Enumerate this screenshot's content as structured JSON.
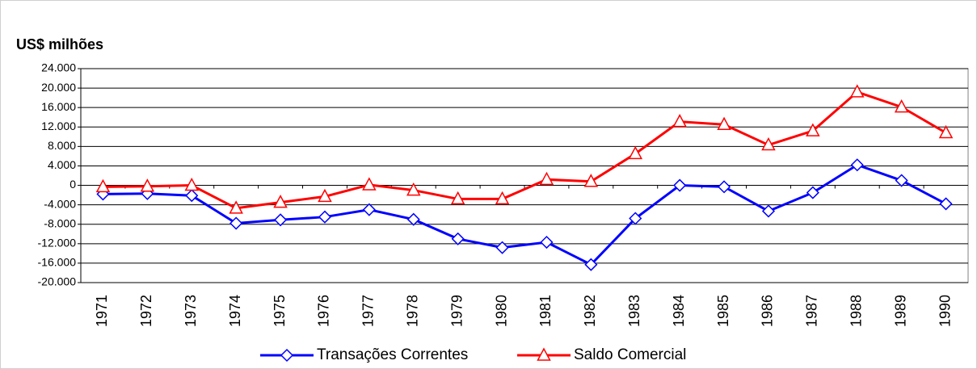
{
  "chart_data": {
    "type": "line",
    "title": "US$ milhões",
    "categories": [
      "1971",
      "1972",
      "1973",
      "1974",
      "1975",
      "1976",
      "1977",
      "1978",
      "1979",
      "1980",
      "1981",
      "1982",
      "1983",
      "1984",
      "1985",
      "1986",
      "1987",
      "1988",
      "1989",
      "1990"
    ],
    "series": [
      {
        "name": "Transações Correntes",
        "color": "#0000ff",
        "marker": "diamond",
        "values": [
          -1800,
          -1700,
          -2100,
          -7800,
          -7100,
          -6500,
          -5000,
          -7000,
          -11000,
          -12800,
          -11700,
          -16300,
          -6800,
          0,
          -300,
          -5300,
          -1500,
          4200,
          1000,
          -3800
        ]
      },
      {
        "name": "Saldo Comercial",
        "color": "#ff0000",
        "marker": "triangle",
        "values": [
          -300,
          -200,
          0,
          -4700,
          -3500,
          -2300,
          100,
          -1000,
          -2800,
          -2800,
          1200,
          800,
          6500,
          13100,
          12500,
          8300,
          11200,
          19200,
          16100,
          10800
        ]
      }
    ],
    "ylim": [
      -20000,
      24000
    ],
    "yticks": [
      {
        "value": -20000,
        "label": "-20.000"
      },
      {
        "value": -16000,
        "label": "-16.000"
      },
      {
        "value": -12000,
        "label": "-12.000"
      },
      {
        "value": -8000,
        "label": "-8.000"
      },
      {
        "value": -4000,
        "label": "-4.000"
      },
      0,
      {
        "value": 4000,
        "label": "4.000"
      },
      {
        "value": 8000,
        "label": "8.000"
      },
      {
        "value": 12000,
        "label": "12.000"
      },
      {
        "value": 16000,
        "label": "16.000"
      },
      {
        "value": 20000,
        "label": "20.000"
      },
      {
        "value": 24000,
        "label": "24.000"
      }
    ],
    "grid": true,
    "legend": "bottom"
  }
}
